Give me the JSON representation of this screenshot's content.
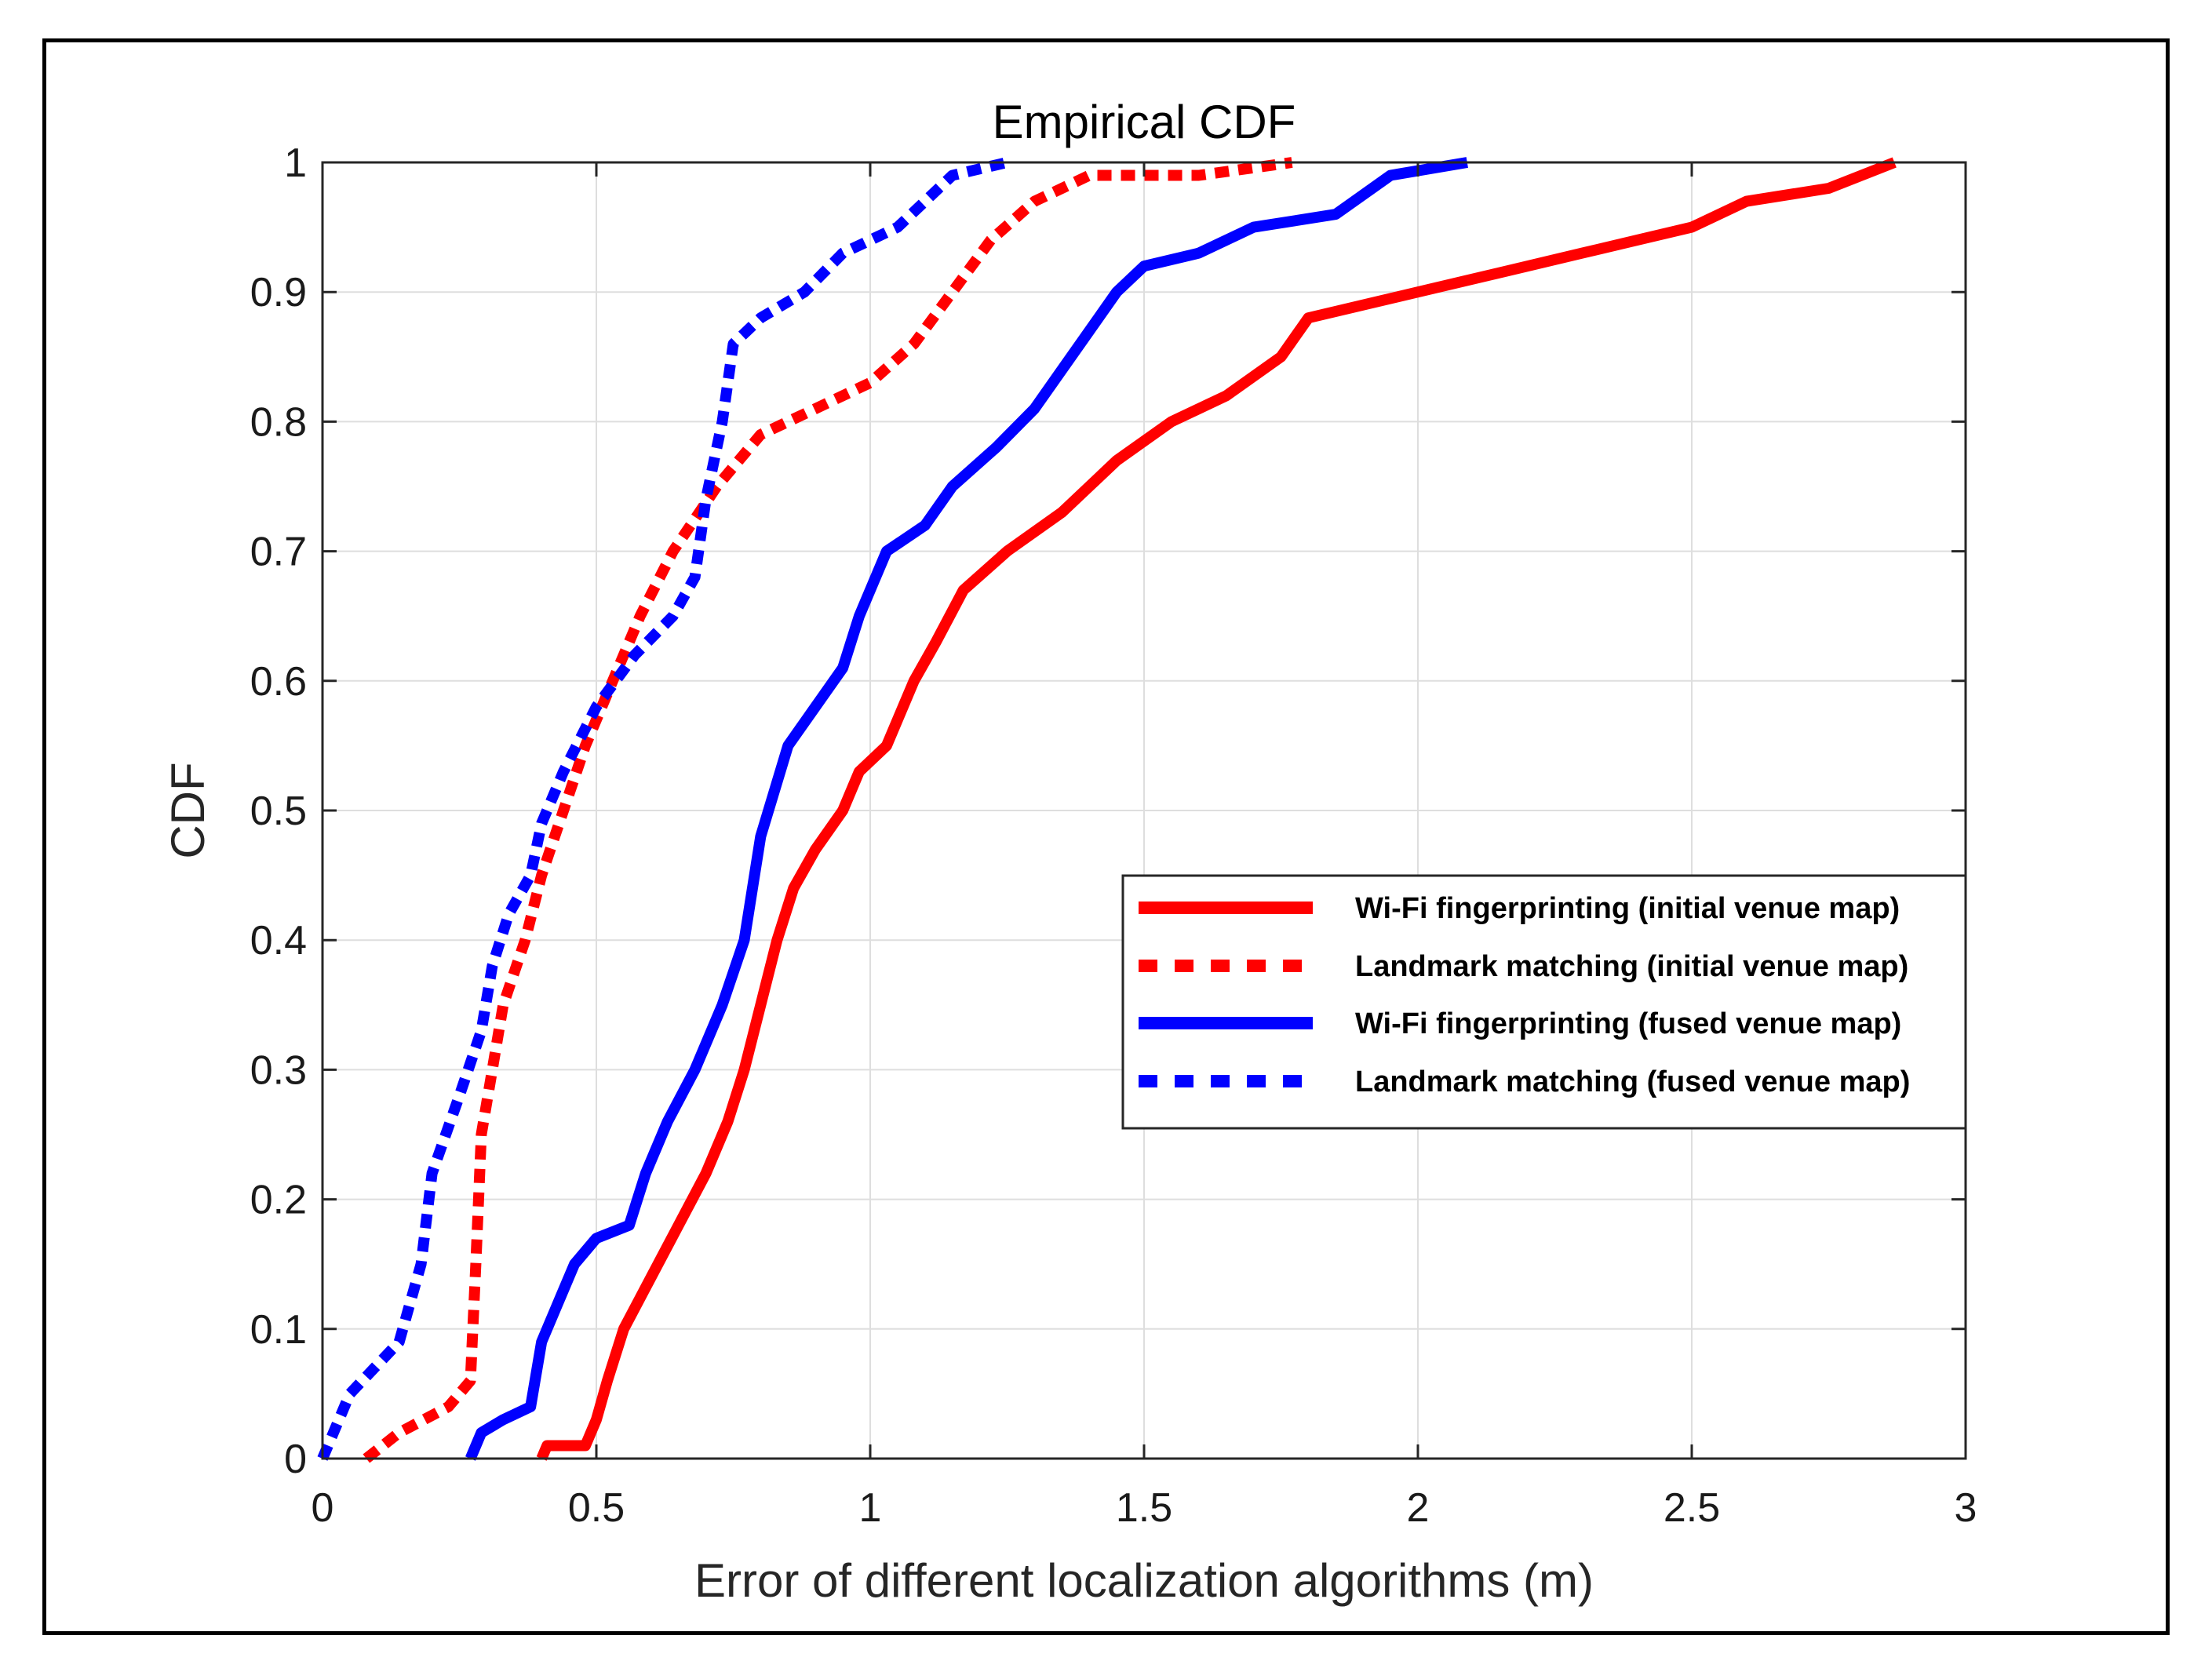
{
  "chart_data": {
    "type": "line",
    "title": "Empirical CDF",
    "xlabel": "Error of different localization algorithms (m)",
    "ylabel": "CDF",
    "xlim": [
      0,
      3
    ],
    "ylim": [
      0,
      1
    ],
    "xticks": [
      "0",
      "0.5",
      "1",
      "1.5",
      "2",
      "2.5",
      "3"
    ],
    "yticks": [
      "0",
      "0.1",
      "0.2",
      "0.3",
      "0.4",
      "0.5",
      "0.6",
      "0.7",
      "0.8",
      "0.9",
      "1"
    ],
    "grid": true,
    "legend_position": "center-right",
    "series": [
      {
        "name": "Wi-Fi fingerprinting (initial venue map)",
        "color": "#ff0000",
        "style": "solid",
        "points": [
          [
            0.4,
            0
          ],
          [
            0.41,
            0.01
          ],
          [
            0.48,
            0.01
          ],
          [
            0.5,
            0.03
          ],
          [
            0.52,
            0.06
          ],
          [
            0.55,
            0.1
          ],
          [
            0.6,
            0.14
          ],
          [
            0.65,
            0.18
          ],
          [
            0.7,
            0.22
          ],
          [
            0.74,
            0.26
          ],
          [
            0.77,
            0.3
          ],
          [
            0.8,
            0.35
          ],
          [
            0.83,
            0.4
          ],
          [
            0.86,
            0.44
          ],
          [
            0.9,
            0.47
          ],
          [
            0.95,
            0.5
          ],
          [
            0.98,
            0.53
          ],
          [
            1.03,
            0.55
          ],
          [
            1.08,
            0.6
          ],
          [
            1.12,
            0.63
          ],
          [
            1.17,
            0.67
          ],
          [
            1.25,
            0.7
          ],
          [
            1.35,
            0.73
          ],
          [
            1.45,
            0.77
          ],
          [
            1.55,
            0.8
          ],
          [
            1.65,
            0.82
          ],
          [
            1.75,
            0.85
          ],
          [
            1.8,
            0.88
          ],
          [
            1.9,
            0.89
          ],
          [
            2.0,
            0.9
          ],
          [
            2.1,
            0.91
          ],
          [
            2.2,
            0.92
          ],
          [
            2.3,
            0.93
          ],
          [
            2.4,
            0.94
          ],
          [
            2.5,
            0.95
          ],
          [
            2.6,
            0.97
          ],
          [
            2.75,
            0.98
          ],
          [
            2.87,
            1.0
          ]
        ]
      },
      {
        "name": "Landmark matching (initial venue map)",
        "color": "#ff0000",
        "style": "dashed",
        "points": [
          [
            0.08,
            0
          ],
          [
            0.14,
            0.02
          ],
          [
            0.23,
            0.04
          ],
          [
            0.27,
            0.06
          ],
          [
            0.28,
            0.15
          ],
          [
            0.29,
            0.25
          ],
          [
            0.31,
            0.3
          ],
          [
            0.33,
            0.35
          ],
          [
            0.37,
            0.4
          ],
          [
            0.4,
            0.45
          ],
          [
            0.44,
            0.5
          ],
          [
            0.48,
            0.55
          ],
          [
            0.53,
            0.6
          ],
          [
            0.58,
            0.65
          ],
          [
            0.64,
            0.7
          ],
          [
            0.72,
            0.75
          ],
          [
            0.8,
            0.79
          ],
          [
            0.9,
            0.81
          ],
          [
            1.0,
            0.83
          ],
          [
            1.08,
            0.86
          ],
          [
            1.15,
            0.9
          ],
          [
            1.22,
            0.94
          ],
          [
            1.3,
            0.97
          ],
          [
            1.4,
            0.99
          ],
          [
            1.6,
            0.99
          ],
          [
            1.77,
            1.0
          ]
        ]
      },
      {
        "name": "Wi-Fi fingerprinting (fused venue map)",
        "color": "#0000ff",
        "style": "solid",
        "points": [
          [
            0.27,
            0
          ],
          [
            0.29,
            0.02
          ],
          [
            0.33,
            0.03
          ],
          [
            0.38,
            0.04
          ],
          [
            0.4,
            0.09
          ],
          [
            0.43,
            0.12
          ],
          [
            0.46,
            0.15
          ],
          [
            0.5,
            0.17
          ],
          [
            0.56,
            0.18
          ],
          [
            0.59,
            0.22
          ],
          [
            0.63,
            0.26
          ],
          [
            0.68,
            0.3
          ],
          [
            0.73,
            0.35
          ],
          [
            0.77,
            0.4
          ],
          [
            0.8,
            0.48
          ],
          [
            0.85,
            0.55
          ],
          [
            0.9,
            0.58
          ],
          [
            0.95,
            0.61
          ],
          [
            0.98,
            0.65
          ],
          [
            1.03,
            0.7
          ],
          [
            1.1,
            0.72
          ],
          [
            1.15,
            0.75
          ],
          [
            1.23,
            0.78
          ],
          [
            1.3,
            0.81
          ],
          [
            1.35,
            0.84
          ],
          [
            1.4,
            0.87
          ],
          [
            1.45,
            0.9
          ],
          [
            1.5,
            0.92
          ],
          [
            1.6,
            0.93
          ],
          [
            1.7,
            0.95
          ],
          [
            1.85,
            0.96
          ],
          [
            1.95,
            0.99
          ],
          [
            2.09,
            1.0
          ]
        ]
      },
      {
        "name": "Landmark matching (fused venue map)",
        "color": "#0000ff",
        "style": "dashed",
        "points": [
          [
            0,
            0
          ],
          [
            0.05,
            0.05
          ],
          [
            0.14,
            0.09
          ],
          [
            0.18,
            0.15
          ],
          [
            0.2,
            0.22
          ],
          [
            0.25,
            0.28
          ],
          [
            0.29,
            0.33
          ],
          [
            0.31,
            0.38
          ],
          [
            0.34,
            0.42
          ],
          [
            0.38,
            0.45
          ],
          [
            0.4,
            0.49
          ],
          [
            0.44,
            0.53
          ],
          [
            0.5,
            0.58
          ],
          [
            0.57,
            0.62
          ],
          [
            0.64,
            0.65
          ],
          [
            0.68,
            0.68
          ],
          [
            0.7,
            0.74
          ],
          [
            0.73,
            0.8
          ],
          [
            0.75,
            0.86
          ],
          [
            0.8,
            0.88
          ],
          [
            0.88,
            0.9
          ],
          [
            0.95,
            0.93
          ],
          [
            1.05,
            0.95
          ],
          [
            1.1,
            0.97
          ],
          [
            1.15,
            0.99
          ],
          [
            1.25,
            1.0
          ]
        ]
      }
    ]
  }
}
